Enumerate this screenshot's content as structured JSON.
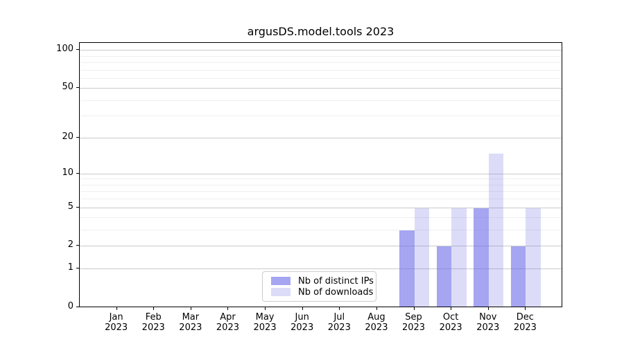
{
  "chart_data": {
    "type": "bar",
    "title": "argusDS.model.tools 2023",
    "categories": [
      {
        "month": "Jan",
        "year": "2023"
      },
      {
        "month": "Feb",
        "year": "2023"
      },
      {
        "month": "Mar",
        "year": "2023"
      },
      {
        "month": "Apr",
        "year": "2023"
      },
      {
        "month": "May",
        "year": "2023"
      },
      {
        "month": "Jun",
        "year": "2023"
      },
      {
        "month": "Jul",
        "year": "2023"
      },
      {
        "month": "Aug",
        "year": "2023"
      },
      {
        "month": "Sep",
        "year": "2023"
      },
      {
        "month": "Oct",
        "year": "2023"
      },
      {
        "month": "Nov",
        "year": "2023"
      },
      {
        "month": "Dec",
        "year": "2023"
      }
    ],
    "series": [
      {
        "name": "Nb of distinct IPs",
        "color": "rgba(105,105,233,0.6)",
        "values": [
          0,
          0,
          0,
          0,
          0,
          0,
          0,
          0,
          3,
          2,
          5,
          2
        ]
      },
      {
        "name": "Nb of downloads",
        "color": "rgba(115,115,231,0.25)",
        "values": [
          0,
          0,
          0,
          0,
          0,
          0,
          0,
          0,
          5,
          5,
          15,
          5
        ]
      }
    ],
    "y_axis": {
      "scale": "log1p",
      "major_ticks": [
        0,
        1,
        2,
        5,
        10,
        20,
        50,
        100
      ],
      "minor_gridlines": [
        3,
        4,
        6,
        7,
        8,
        9,
        30,
        40,
        60,
        70,
        80,
        90
      ],
      "top_value": 115,
      "ylim": [
        0,
        115
      ]
    },
    "legend": {
      "position": "lower center"
    },
    "grid": true
  },
  "colors": {
    "major_grid": "#c9c9c9",
    "minor_grid": "#efefef",
    "spine": "#000000",
    "background": "#ffffff"
  }
}
